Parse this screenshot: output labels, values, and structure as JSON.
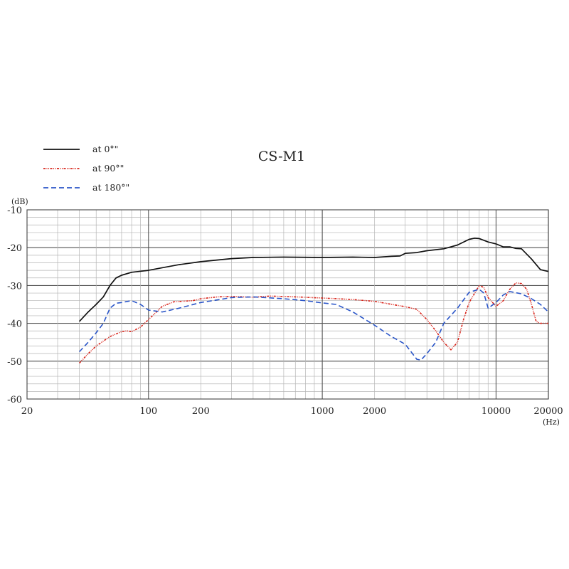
{
  "chart_data": {
    "type": "line",
    "title": "CS-M1",
    "y_unit": "(dB)",
    "x_unit": "(Hz)",
    "x_scale": "log",
    "xlim": [
      20,
      20000
    ],
    "ylim": [
      -60,
      -10
    ],
    "x_tick_values": [
      20,
      100,
      200,
      1000,
      2000,
      10000,
      20000
    ],
    "x_tick_labels": [
      "20",
      "100",
      "200",
      "1000",
      "2000",
      "10000",
      "20000"
    ],
    "y_tick_values": [
      -10,
      -20,
      -30,
      -40,
      -50,
      -60
    ],
    "y_tick_labels": [
      "-10",
      "-20",
      "-30",
      "-40",
      "-50",
      "-60"
    ],
    "grid": true,
    "legend_position": "top-left",
    "series": [
      {
        "name": "at 0°\"",
        "color": "#111111",
        "style": "solid",
        "points": [
          [
            40,
            -39.5
          ],
          [
            45,
            -37
          ],
          [
            50,
            -35
          ],
          [
            55,
            -33
          ],
          [
            60,
            -30
          ],
          [
            65,
            -28
          ],
          [
            70,
            -27.3
          ],
          [
            80,
            -26.5
          ],
          [
            100,
            -26
          ],
          [
            120,
            -25.3
          ],
          [
            150,
            -24.5
          ],
          [
            200,
            -23.7
          ],
          [
            300,
            -22.9
          ],
          [
            400,
            -22.6
          ],
          [
            600,
            -22.5
          ],
          [
            1000,
            -22.6
          ],
          [
            1500,
            -22.5
          ],
          [
            2000,
            -22.6
          ],
          [
            2500,
            -22.3
          ],
          [
            2800,
            -22.2
          ],
          [
            3000,
            -21.5
          ],
          [
            3500,
            -21.3
          ],
          [
            4000,
            -20.8
          ],
          [
            5000,
            -20.3
          ],
          [
            6000,
            -19.3
          ],
          [
            7000,
            -17.8
          ],
          [
            7500,
            -17.5
          ],
          [
            8000,
            -17.6
          ],
          [
            9000,
            -18.5
          ],
          [
            10000,
            -19.0
          ],
          [
            11000,
            -19.8
          ],
          [
            12000,
            -19.8
          ],
          [
            13000,
            -20.2
          ],
          [
            14000,
            -20.3
          ],
          [
            16000,
            -23.0
          ],
          [
            18000,
            -25.8
          ],
          [
            20000,
            -26.3
          ]
        ]
      },
      {
        "name": "at 90°\"",
        "color": "#d8241a",
        "style": "dash-dot-dot",
        "points": [
          [
            40,
            -50.5
          ],
          [
            45,
            -48
          ],
          [
            50,
            -46
          ],
          [
            60,
            -43.5
          ],
          [
            70,
            -42.2
          ],
          [
            75,
            -42
          ],
          [
            80,
            -42.2
          ],
          [
            90,
            -41
          ],
          [
            100,
            -39
          ],
          [
            120,
            -35.5
          ],
          [
            140,
            -34.3
          ],
          [
            180,
            -34
          ],
          [
            200,
            -33.5
          ],
          [
            250,
            -33
          ],
          [
            300,
            -32.9
          ],
          [
            400,
            -33.1
          ],
          [
            500,
            -32.8
          ],
          [
            700,
            -33
          ],
          [
            1000,
            -33.3
          ],
          [
            1500,
            -33.7
          ],
          [
            2000,
            -34.2
          ],
          [
            3000,
            -35.6
          ],
          [
            3500,
            -36.3
          ],
          [
            4000,
            -39
          ],
          [
            4500,
            -42
          ],
          [
            5000,
            -45
          ],
          [
            5500,
            -47
          ],
          [
            6000,
            -45
          ],
          [
            6500,
            -39
          ],
          [
            7000,
            -34.5
          ],
          [
            8000,
            -30
          ],
          [
            8500,
            -30.5
          ],
          [
            9000,
            -33.2
          ],
          [
            10000,
            -35.5
          ],
          [
            11000,
            -34
          ],
          [
            12000,
            -31
          ],
          [
            13000,
            -29.3
          ],
          [
            14000,
            -29.5
          ],
          [
            15000,
            -31
          ],
          [
            16000,
            -35
          ],
          [
            17000,
            -39.5
          ],
          [
            18000,
            -40
          ],
          [
            20000,
            -40
          ]
        ]
      },
      {
        "name": "at 180°\"",
        "color": "#2b56c8",
        "style": "dashed",
        "points": [
          [
            40,
            -47.5
          ],
          [
            45,
            -45
          ],
          [
            50,
            -42.5
          ],
          [
            55,
            -40
          ],
          [
            60,
            -36
          ],
          [
            65,
            -34.7
          ],
          [
            70,
            -34.5
          ],
          [
            80,
            -34
          ],
          [
            90,
            -35
          ],
          [
            100,
            -36.5
          ],
          [
            120,
            -37
          ],
          [
            150,
            -36
          ],
          [
            200,
            -34.5
          ],
          [
            250,
            -33.8
          ],
          [
            300,
            -33.2
          ],
          [
            400,
            -33
          ],
          [
            600,
            -33.5
          ],
          [
            800,
            -34
          ],
          [
            1000,
            -34.6
          ],
          [
            1200,
            -35
          ],
          [
            1500,
            -37
          ],
          [
            2000,
            -40.5
          ],
          [
            2500,
            -43.5
          ],
          [
            3000,
            -45.5
          ],
          [
            3500,
            -49.5
          ],
          [
            3700,
            -49.7
          ],
          [
            4000,
            -48
          ],
          [
            4500,
            -45
          ],
          [
            5000,
            -40
          ],
          [
            6000,
            -36
          ],
          [
            7000,
            -31.8
          ],
          [
            8000,
            -31
          ],
          [
            8500,
            -32
          ],
          [
            9000,
            -36
          ],
          [
            10000,
            -34.5
          ],
          [
            11000,
            -32.5
          ],
          [
            12000,
            -31.6
          ],
          [
            14000,
            -32.2
          ],
          [
            16000,
            -33.5
          ],
          [
            18000,
            -35
          ],
          [
            20000,
            -37
          ]
        ]
      }
    ]
  }
}
